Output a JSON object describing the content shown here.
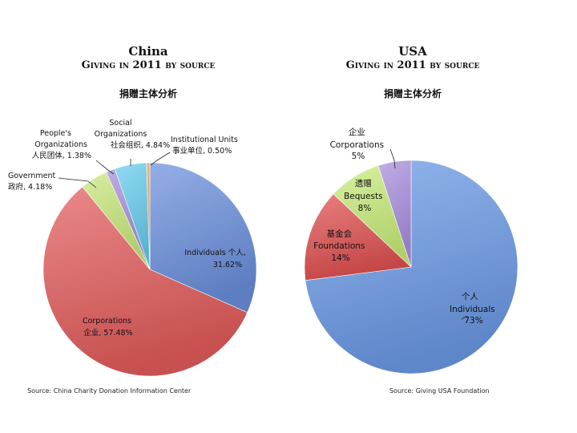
{
  "chart_data": [
    {
      "type": "pie",
      "title": "China",
      "subtitle": "Giving in 2011 by source",
      "subtitle_cn": "捐赠主体分析",
      "source": "Source: China Charity Donation Information Center",
      "slices": [
        {
          "label": "Individuals 个人, 31.62%",
          "value": 31.62,
          "color": "#6b8fdc"
        },
        {
          "label": "Corporations 企业, 57.48%",
          "value": 57.48,
          "color": "#e25b5b"
        },
        {
          "label": "Government 政府, 4.18%",
          "value": 4.18,
          "color": "#c8e87a"
        },
        {
          "label": "People's Organizations 人民团体, 1.38%",
          "value": 1.38,
          "color": "#a58ed8"
        },
        {
          "label": "Social Organizations 社会组织, 4.84%",
          "value": 4.84,
          "color": "#66ccee"
        },
        {
          "label": "Institutional Units 事业单位, 0.50%",
          "value": 0.5,
          "color": "#f0a050"
        }
      ]
    },
    {
      "type": "pie",
      "title": "USA",
      "subtitle": "Giving in 2011 by source",
      "subtitle_cn": "捐赠主体分析",
      "source": "Source: Giving USA Foundation",
      "slices": [
        {
          "label": "个人 Individuals 73%",
          "value": 73,
          "color": "#6b99e6"
        },
        {
          "label": "基金会 Foundations 14%",
          "value": 14,
          "color": "#e04f4f"
        },
        {
          "label": "遗赠 Bequests 8%",
          "value": 8,
          "color": "#c8ec7a"
        },
        {
          "label": "企业 Corporations 5%",
          "value": 5,
          "color": "#a88ede"
        }
      ]
    }
  ],
  "labels": {
    "china": {
      "individuals": [
        "Individuals 个人,",
        "31.62%"
      ],
      "corporations": [
        "Corporations",
        "企业, 57.48%"
      ],
      "government": [
        "Government",
        "政府, 4.18%"
      ],
      "peoples": [
        "People's",
        "Organizations",
        "人民团体, 1.38%"
      ],
      "social": [
        "Social",
        "Organizations",
        "社会组织, 4.84%"
      ],
      "institutional": [
        "Institutional Units",
        "事业单位, 0.50%"
      ]
    },
    "usa": {
      "individuals": [
        "个人",
        "Individuals",
        "73%"
      ],
      "foundations": [
        "基金会",
        "Foundations",
        "14%"
      ],
      "bequests": [
        "遗赠",
        "Bequests",
        "8%"
      ],
      "corporations": [
        "企业",
        "Corporations",
        "5%"
      ]
    }
  }
}
